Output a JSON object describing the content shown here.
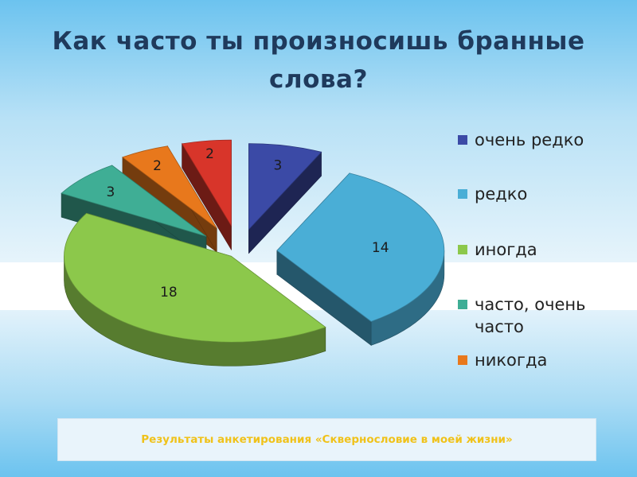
{
  "slide": {
    "title": "Как часто ты произносишь бранные слова?",
    "footer": "Результаты анкетирования «Сквернословие в моей жизни»"
  },
  "chart_data": {
    "type": "pie",
    "title": "Как часто ты произносишь бранные слова?",
    "exploded": true,
    "three_d": true,
    "legend_position": "right",
    "categories": [
      "очень редко",
      "редко",
      "иногда",
      "часто, очень часто",
      "никогда",
      ""
    ],
    "values": [
      3,
      14,
      18,
      3,
      2,
      2
    ],
    "colors": [
      "#3b4aa6",
      "#4aaed6",
      "#8cc84b",
      "#3fae95",
      "#e8781c",
      "#d8352a"
    ],
    "legend": [
      {
        "label": "очень редко",
        "color": "#3b4aa6"
      },
      {
        "label": "редко",
        "color": "#4aaed6"
      },
      {
        "label": "иногда",
        "color": "#8cc84b"
      },
      {
        "label": "часто, очень часто",
        "color": "#3fae95"
      },
      {
        "label": "никогда",
        "color": "#e8781c"
      }
    ]
  }
}
